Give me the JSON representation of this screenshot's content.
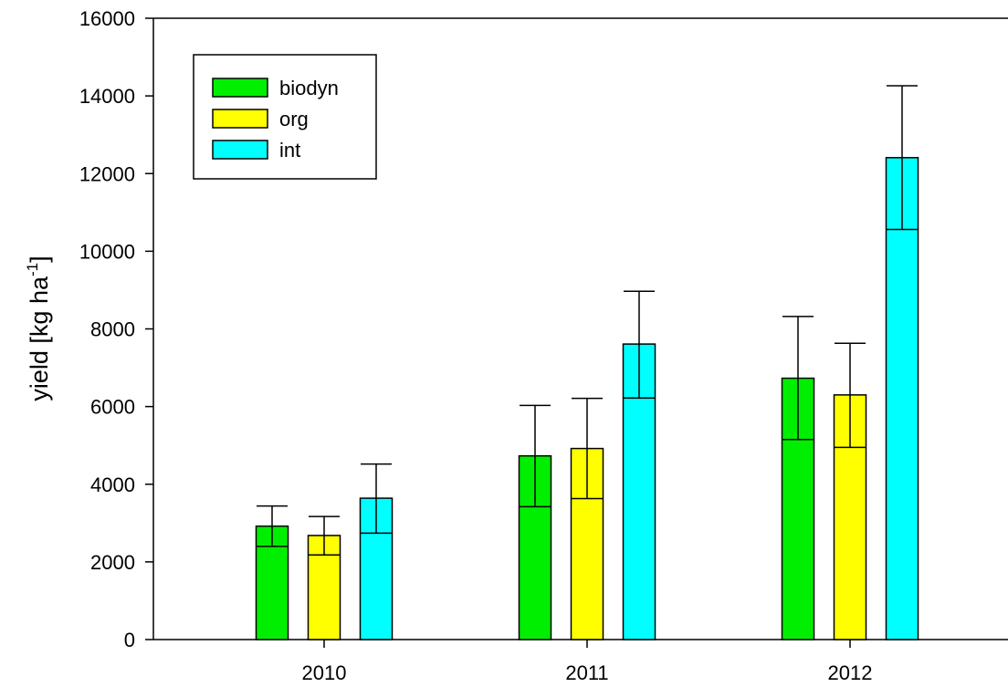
{
  "chart_data": {
    "type": "bar",
    "categories": [
      "2010",
      "2011",
      "2012"
    ],
    "series": [
      {
        "name": "biodyn",
        "color": "#00ee00",
        "values": [
          2920,
          4730,
          6730
        ],
        "err_low": [
          2400,
          3420,
          5150
        ],
        "err_high": [
          3440,
          6030,
          8320
        ]
      },
      {
        "name": "org",
        "color": "#ffff00",
        "values": [
          2680,
          4920,
          6300
        ],
        "err_low": [
          2180,
          3630,
          4950
        ],
        "err_high": [
          3170,
          6210,
          7630
        ]
      },
      {
        "name": "int",
        "color": "#00ffff",
        "values": [
          3640,
          7610,
          12410
        ],
        "err_low": [
          2740,
          6220,
          10560
        ],
        "err_high": [
          4520,
          8970,
          14260
        ]
      }
    ],
    "xlabel": "",
    "ylabel": {
      "main": "yield [kg ha",
      "sup": "-1",
      "close": "]"
    },
    "ylim": [
      0,
      16000
    ],
    "yticks": [
      {
        "value": 0,
        "label": "0"
      },
      {
        "value": 2000,
        "label": "2000"
      },
      {
        "value": 4000,
        "label": "4000"
      },
      {
        "value": 6000,
        "label": "6000"
      },
      {
        "value": 8000,
        "label": "8000"
      },
      {
        "value": 10000,
        "label": "10000"
      },
      {
        "value": 12000,
        "label": "12000"
      },
      {
        "value": 14000,
        "label": "14000"
      },
      {
        "value": 16000,
        "label": "16000"
      }
    ],
    "grid": false,
    "legend_position": "top-left",
    "legend_labels": [
      "biodyn",
      "org",
      "int"
    ]
  }
}
